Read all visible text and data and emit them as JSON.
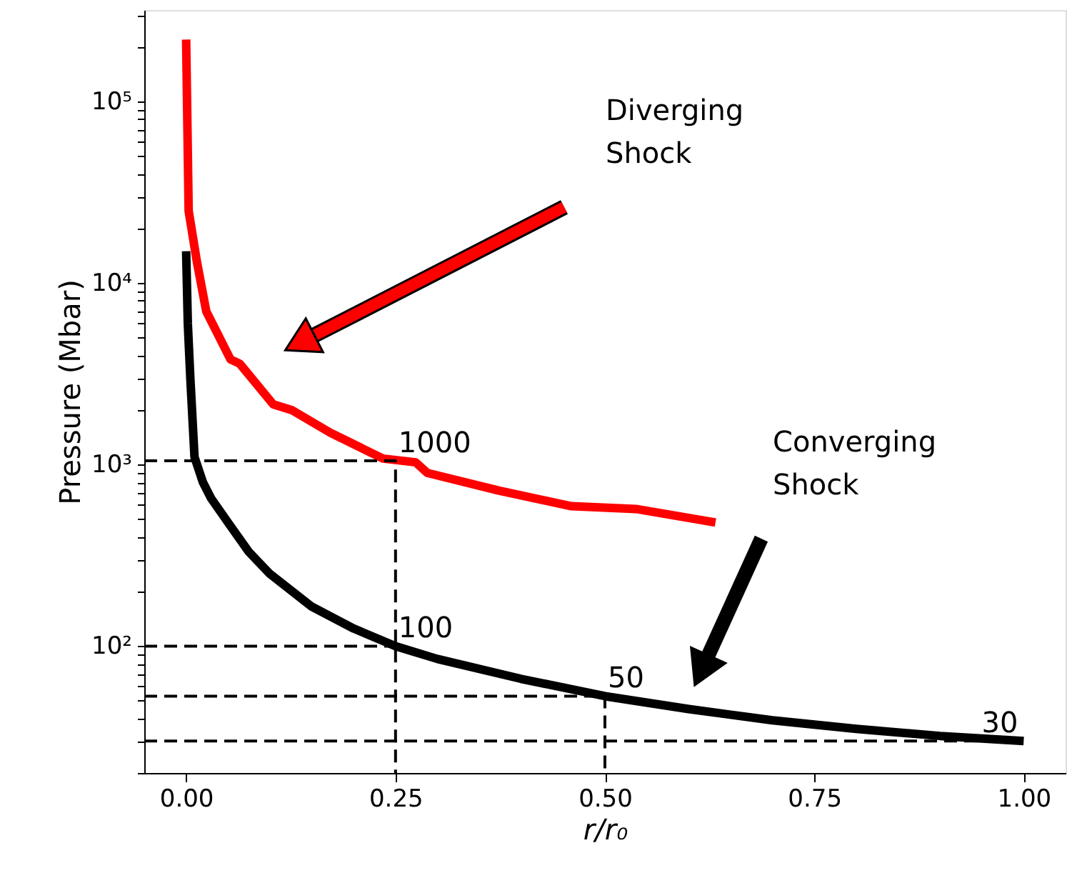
{
  "chart_data": {
    "type": "line",
    "xlabel": "r/r₀",
    "ylabel": "Pressure (Mbar)",
    "log": "y",
    "grid": false,
    "marker": "none",
    "xlim": [
      -0.05,
      1.05
    ],
    "ylim": [
      20,
      320000
    ],
    "xticks": [
      {
        "value": 0,
        "label": "0.00"
      },
      {
        "value": 0.25,
        "label": "0.25"
      },
      {
        "value": 0.5,
        "label": "0.50"
      },
      {
        "value": 0.75,
        "label": "0.75"
      },
      {
        "value": 1,
        "label": "1.00"
      }
    ],
    "yticks": [
      {
        "value": 100,
        "label": "10²"
      },
      {
        "value": 1000,
        "label": "10³"
      },
      {
        "value": 10000,
        "label": "10⁴"
      },
      {
        "value": 100000,
        "label": "10⁵"
      },
      {
        "value": 20,
        "label": null
      },
      {
        "value": 30,
        "label": null
      },
      {
        "value": 40,
        "label": null
      },
      {
        "value": 50,
        "label": null
      },
      {
        "value": 60,
        "label": null
      },
      {
        "value": 70,
        "label": null
      },
      {
        "value": 80,
        "label": null
      },
      {
        "value": 90,
        "label": null
      },
      {
        "value": 200,
        "label": null
      },
      {
        "value": 300,
        "label": null
      },
      {
        "value": 400,
        "label": null
      },
      {
        "value": 500,
        "label": null
      },
      {
        "value": 600,
        "label": null
      },
      {
        "value": 700,
        "label": null
      },
      {
        "value": 800,
        "label": null
      },
      {
        "value": 900,
        "label": null
      },
      {
        "value": 2000,
        "label": null
      },
      {
        "value": 3000,
        "label": null
      },
      {
        "value": 4000,
        "label": null
      },
      {
        "value": 5000,
        "label": null
      },
      {
        "value": 6000,
        "label": null
      },
      {
        "value": 7000,
        "label": null
      },
      {
        "value": 8000,
        "label": null
      },
      {
        "value": 9000,
        "label": null
      },
      {
        "value": 20000,
        "label": null
      },
      {
        "value": 30000,
        "label": null
      },
      {
        "value": 40000,
        "label": null
      },
      {
        "value": 50000,
        "label": null
      },
      {
        "value": 60000,
        "label": null
      },
      {
        "value": 70000,
        "label": null
      },
      {
        "value": 80000,
        "label": null
      },
      {
        "value": 90000,
        "label": null
      },
      {
        "value": 200000,
        "label": null
      },
      {
        "value": 300000,
        "label": null
      }
    ],
    "series": [
      {
        "color": "#ff0000",
        "line_style": "solid",
        "x": [
          0,
          0.003,
          0.013,
          0.024,
          0.053,
          0.064,
          0.104,
          0.126,
          0.172,
          0.235,
          0.274,
          0.288,
          0.373,
          0.46,
          0.537,
          0.632
        ],
        "values": [
          220000,
          25000,
          13000,
          7000,
          3800,
          3600,
          2150,
          2000,
          1500,
          1080,
          1030,
          900,
          720,
          590,
          570,
          480
        ]
      },
      {
        "color": "#000000",
        "line_style": "solid",
        "x": [
          0,
          0.002,
          0.005,
          0.01,
          0.02,
          0.03,
          0.05,
          0.075,
          0.1,
          0.15,
          0.2,
          0.25,
          0.3,
          0.4,
          0.5,
          0.6,
          0.7,
          0.8,
          0.9,
          1.0
        ],
        "values": [
          15000,
          6000,
          3000,
          1100,
          800,
          650,
          480,
          330,
          250,
          165,
          125,
          100,
          85,
          66,
          53,
          45,
          39,
          35,
          32,
          30
        ]
      },
      {
        "color": "#000000",
        "line_style": "dashed",
        "x": [
          -0.05,
          0.25,
          0.25
        ],
        "values": [
          1050,
          1050,
          20
        ]
      },
      {
        "color": "#000000",
        "line_style": "dashed",
        "x": [
          -0.05,
          0.25
        ],
        "values": [
          100,
          100
        ]
      },
      {
        "color": "#000000",
        "line_style": "dashed",
        "x": [
          -0.05,
          0.5,
          0.5
        ],
        "values": [
          53,
          53,
          20
        ]
      },
      {
        "color": "#000000",
        "line_style": "dashed",
        "x": [
          -0.05,
          1.0
        ],
        "values": [
          30,
          30
        ]
      }
    ],
    "annotations": [
      "Diverging\nShock",
      "Converging\nShock",
      {
        "text": "1000",
        "x": 0.25,
        "y": 1050
      },
      {
        "text": "100",
        "x": 0.25,
        "y": 100
      },
      {
        "text": "50",
        "x": 0.5,
        "y": 53
      },
      {
        "text": "30",
        "x": 1.0,
        "y": 30
      }
    ]
  }
}
